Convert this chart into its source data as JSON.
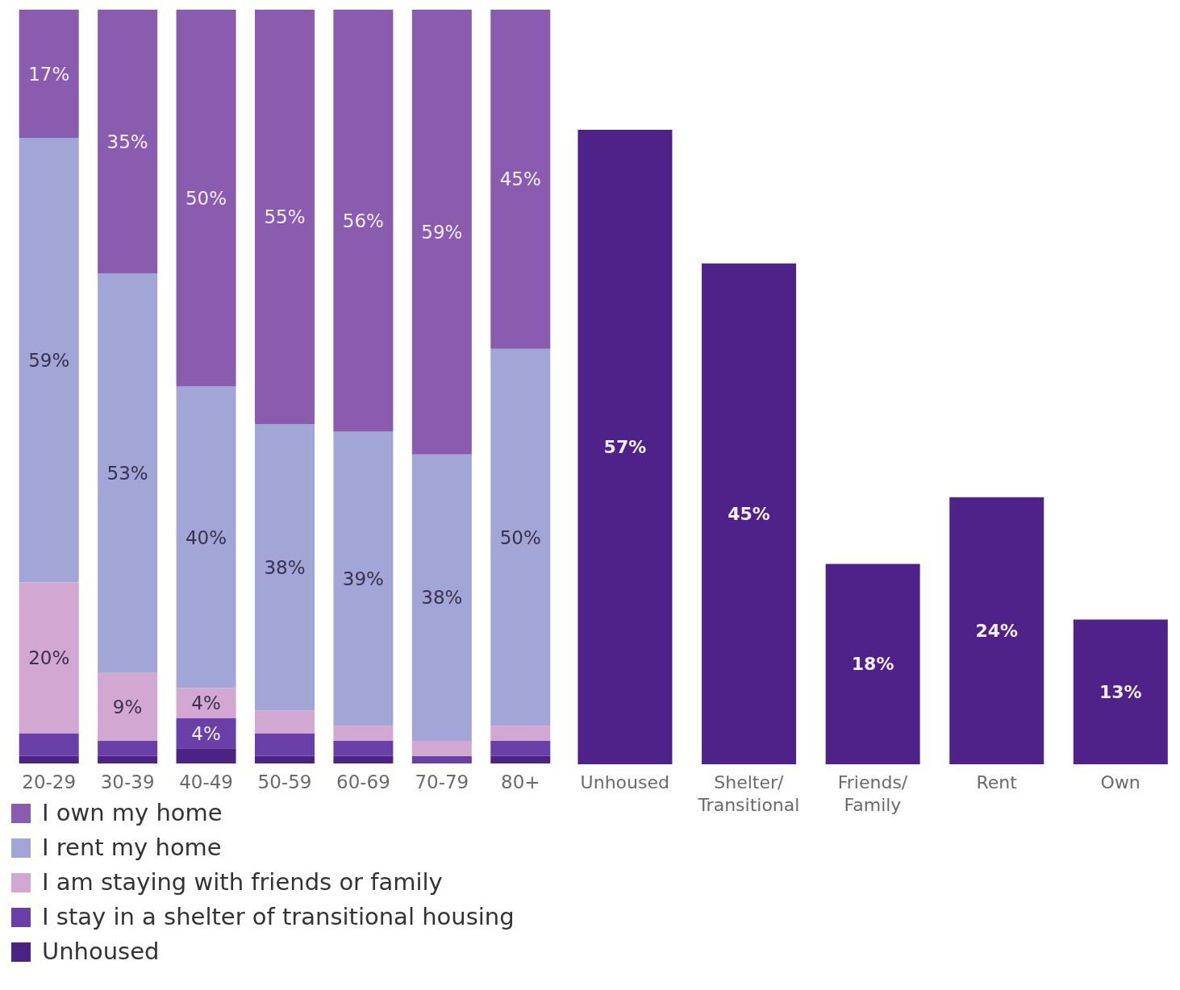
{
  "chart_data": [
    {
      "type": "bar",
      "stacked": true,
      "tick_labels": "x",
      "categories": [
        "20-29",
        "30-39",
        "40-49",
        "50-59",
        "60-69",
        "70-79",
        "80+"
      ],
      "legend": "bottom",
      "series": [
        {
          "name": "Unhoused",
          "color": "#4a2385",
          "values": [
            1,
            1,
            2,
            1,
            1,
            0,
            1
          ],
          "value_labels": [
            null,
            null,
            null,
            null,
            null,
            null,
            null
          ]
        },
        {
          "name": "I stay in a shelter of transitional housing",
          "color": "#6a3fa8",
          "values": [
            3,
            2,
            4,
            3,
            2,
            1,
            2
          ],
          "value_labels": [
            null,
            null,
            "4%",
            null,
            null,
            null,
            null
          ]
        },
        {
          "name": "I am staying with friends or family",
          "color": "#d2a8d2",
          "values": [
            20,
            9,
            4,
            3,
            2,
            2,
            2
          ],
          "value_labels": [
            "20%",
            "9%",
            "4%",
            null,
            null,
            null,
            null
          ]
        },
        {
          "name": "I rent my home",
          "color": "#a2a6d6",
          "values": [
            59,
            53,
            40,
            38,
            39,
            38,
            50
          ],
          "value_labels": [
            "59%",
            "53%",
            "40%",
            "38%",
            "39%",
            "38%",
            "50%"
          ]
        },
        {
          "name": "I own my home",
          "color": "#8a5cb0",
          "values": [
            17,
            35,
            50,
            55,
            56,
            59,
            45
          ],
          "value_labels": [
            "17%",
            "35%",
            "50%",
            "55%",
            "56%",
            "59%",
            "45%"
          ]
        }
      ]
    },
    {
      "type": "bar",
      "tick_labels": "x",
      "categories": [
        "Unhoused",
        "Shelter/ Transitional",
        "Friends/ Family",
        "Rent",
        "Own"
      ],
      "values": [
        57,
        45,
        18,
        24,
        13
      ],
      "color": "#4e2289",
      "value_labels": [
        "57%",
        "45%",
        "18%",
        "24%",
        "13%"
      ]
    }
  ]
}
